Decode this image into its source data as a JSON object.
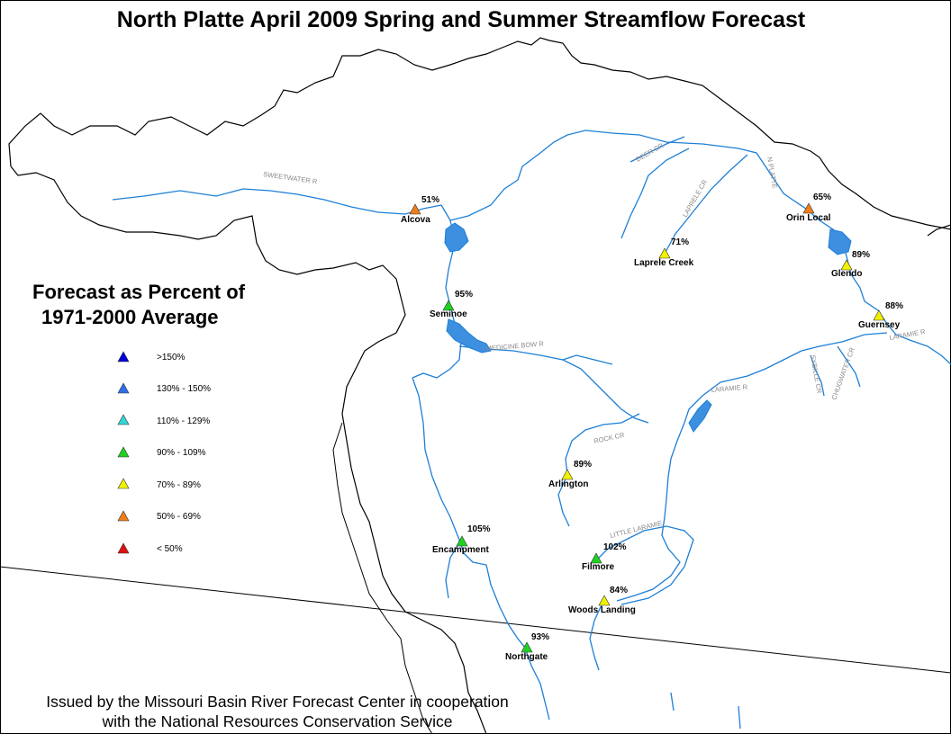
{
  "title": "North Platte April 2009 Spring and Summer Streamflow Forecast",
  "legend": {
    "title_line1": "Forecast as Percent of",
    "title_line2": "1971-2000 Average",
    "items": [
      {
        "label": ">150%",
        "color": "#0000d8"
      },
      {
        "label": "130% - 150%",
        "color": "#2c6fe8"
      },
      {
        "label": "110% - 129%",
        "color": "#33d6d6"
      },
      {
        "label": "90% - 109%",
        "color": "#1fd21f"
      },
      {
        "label": "70% - 89%",
        "color": "#f2f200"
      },
      {
        "label": "50% - 69%",
        "color": "#f07d1a"
      },
      {
        "label": "< 50%",
        "color": "#e01010"
      }
    ]
  },
  "stations": [
    {
      "name": "Alcova",
      "percent": "51%",
      "color": "#f07d1a"
    },
    {
      "name": "Seminoe",
      "percent": "95%",
      "color": "#1fd21f"
    },
    {
      "name": "Laprele Creek",
      "percent": "71%",
      "color": "#f2f200"
    },
    {
      "name": "Orin Local",
      "percent": "65%",
      "color": "#f07d1a"
    },
    {
      "name": "Glendo",
      "percent": "89%",
      "color": "#f2f200"
    },
    {
      "name": "Guernsey",
      "percent": "88%",
      "color": "#f2f200"
    },
    {
      "name": "Arlington",
      "percent": "89%",
      "color": "#f2f200"
    },
    {
      "name": "Encampment",
      "percent": "105%",
      "color": "#1fd21f"
    },
    {
      "name": "Filmore",
      "percent": "102%",
      "color": "#1fd21f"
    },
    {
      "name": "Woods Landing",
      "percent": "84%",
      "color": "#f2f200"
    },
    {
      "name": "Northgate",
      "percent": "93%",
      "color": "#1fd21f"
    }
  ],
  "rivers": [
    "SWEETWATER R",
    "DEER CR",
    "LAPRELE CR",
    "N PLATTE",
    "MEDICINE BOW R",
    "LARAMIE R",
    "SYBILLE CR",
    "CHUGWATER CR",
    "LARAMIE R",
    "ROCK CR",
    "LITTLE LARAMIE"
  ],
  "footer": {
    "line1": "Issued by the Missouri Basin River Forecast Center in cooperation",
    "line2": "with the National Resources Conservation Service"
  },
  "colors": {
    "river": "#1e7fd6",
    "lake": "#3d8fe0",
    "boundary": "#000000"
  }
}
